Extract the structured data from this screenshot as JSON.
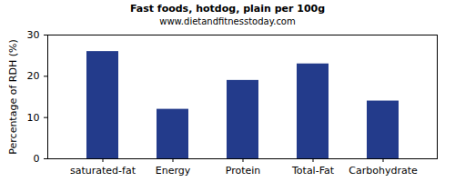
{
  "chart_data": {
    "type": "bar",
    "title": "Fast foods, hotdog, plain per 100g",
    "subtitle": "www.dietandfitnesstoday.com",
    "y_label": "Percentage of RDH (%)",
    "categories": [
      "saturated-fat",
      "Energy",
      "Protein",
      "Total-Fat",
      "Carbohydrate"
    ],
    "values": [
      26,
      12,
      19,
      23,
      14
    ],
    "color": "#233b8b",
    "ylim": [
      0,
      30
    ],
    "yticks": [
      0,
      10,
      20,
      30
    ],
    "grid": false
  }
}
